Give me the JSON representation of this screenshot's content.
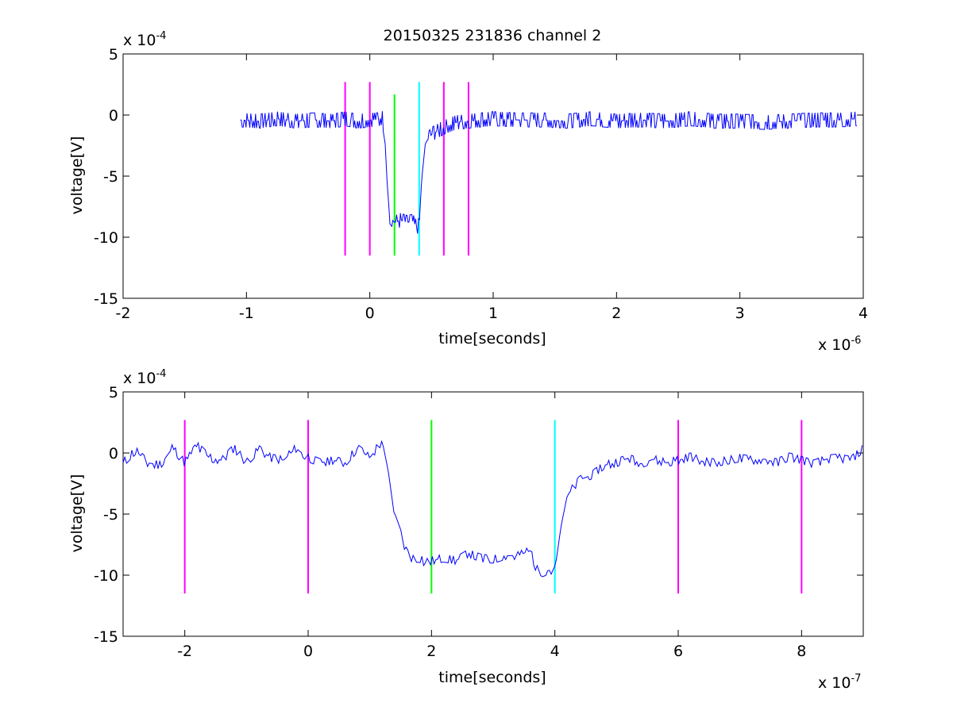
{
  "colors": {
    "background": "#ffffff",
    "axes": "#000000",
    "trace": "#0000ff",
    "marker_magenta": "#ff00ff",
    "marker_green": "#00ff00",
    "marker_cyan": "#00ffff"
  },
  "chart_data": [
    {
      "type": "line",
      "title": "20150325 231836 channel 2",
      "xlabel": "time[seconds]",
      "ylabel": "voltage[V]",
      "x_scale_label": "x 10",
      "x_scale_exponent": "-6",
      "y_scale_label": "x 10",
      "y_scale_exponent": "-4",
      "xlim": [
        -2,
        4
      ],
      "ylim": [
        -15,
        5
      ],
      "xticks": [
        -2,
        -1,
        0,
        1,
        2,
        3,
        4
      ],
      "xtick_labels": [
        "-2",
        "-1",
        "0",
        "1",
        "2",
        "3",
        "4"
      ],
      "yticks": [
        -15,
        -10,
        -5,
        0,
        5
      ],
      "ytick_labels": [
        "-15",
        "-10",
        "-5",
        "0",
        "5"
      ],
      "grid": false,
      "series": [
        {
          "color": "#0000ff",
          "x": [
            -1.05,
            -0.9,
            -0.75,
            -0.6,
            -0.45,
            -0.3,
            -0.2,
            -0.1,
            0.0,
            0.06,
            0.1,
            0.12,
            0.14,
            0.16,
            0.2,
            0.25,
            0.3,
            0.35,
            0.38,
            0.4,
            0.42,
            0.45,
            0.5,
            0.6,
            0.7,
            0.8,
            1.0,
            1.2,
            1.4,
            1.6,
            1.8,
            2.0,
            2.2,
            2.4,
            2.6,
            2.8,
            3.0,
            3.2,
            3.4,
            3.6,
            3.8,
            3.95
          ],
          "y": [
            -0.4,
            -0.5,
            -0.3,
            -0.5,
            -0.4,
            -0.5,
            -0.3,
            -0.5,
            -0.4,
            -0.4,
            -0.2,
            -1.5,
            -5.5,
            -8.3,
            -8.8,
            -8.6,
            -8.8,
            -8.7,
            -9.2,
            -9.0,
            -5.3,
            -2.3,
            -1.6,
            -1.0,
            -0.6,
            -0.5,
            -0.3,
            -0.4,
            -0.4,
            -0.5,
            -0.3,
            -0.5,
            -0.4,
            -0.5,
            -0.3,
            -0.5,
            -0.5,
            -0.6,
            -0.5,
            -0.4,
            -0.4,
            -0.3
          ]
        }
      ],
      "markers": [
        {
          "x": -0.2,
          "y_range": [
            -11.5,
            2.7
          ],
          "color": "#ff00ff"
        },
        {
          "x": 0.0,
          "y_range": [
            -11.5,
            2.7
          ],
          "color": "#ff00ff"
        },
        {
          "x": 0.2,
          "y_range": [
            -11.5,
            1.7
          ],
          "color": "#00ff00"
        },
        {
          "x": 0.4,
          "y_range": [
            -11.5,
            2.7
          ],
          "color": "#00ffff"
        },
        {
          "x": 0.6,
          "y_range": [
            -11.5,
            2.7
          ],
          "color": "#ff00ff"
        },
        {
          "x": 0.8,
          "y_range": [
            -11.5,
            2.7
          ],
          "color": "#ff00ff"
        }
      ]
    },
    {
      "type": "line",
      "title": "",
      "xlabel": "time[seconds]",
      "ylabel": "voltage[V]",
      "x_scale_label": "x 10",
      "x_scale_exponent": "-7",
      "y_scale_label": "x 10",
      "y_scale_exponent": "-4",
      "xlim": [
        -3,
        9
      ],
      "ylim": [
        -15,
        5
      ],
      "xticks": [
        -2,
        0,
        2,
        4,
        6,
        8
      ],
      "xtick_labels": [
        "-2",
        "0",
        "2",
        "4",
        "6",
        "8"
      ],
      "yticks": [
        -15,
        -10,
        -5,
        0,
        5
      ],
      "ytick_labels": [
        "-15",
        "-10",
        "-5",
        "0",
        "5"
      ],
      "grid": false,
      "series": [
        {
          "color": "#0000ff",
          "x": [
            -3.0,
            -2.8,
            -2.6,
            -2.4,
            -2.2,
            -2.0,
            -1.8,
            -1.6,
            -1.4,
            -1.2,
            -1.0,
            -0.8,
            -0.6,
            -0.4,
            -0.2,
            0.0,
            0.2,
            0.4,
            0.6,
            0.8,
            1.0,
            1.2,
            1.3,
            1.4,
            1.5,
            1.6,
            1.7,
            1.8,
            1.9,
            2.0,
            2.2,
            2.4,
            2.6,
            2.8,
            3.0,
            3.2,
            3.4,
            3.6,
            3.7,
            3.8,
            3.9,
            4.0,
            4.1,
            4.2,
            4.3,
            4.4,
            4.6,
            4.8,
            5.0,
            5.2,
            5.4,
            5.6,
            5.8,
            6.0,
            6.2,
            6.4,
            6.6,
            6.8,
            7.0,
            7.2,
            7.4,
            7.6,
            7.8,
            8.0,
            8.2,
            8.4,
            8.6,
            8.8,
            9.0
          ],
          "y": [
            -0.8,
            0.2,
            -0.8,
            -1.0,
            0.4,
            -0.8,
            0.6,
            -0.4,
            -0.6,
            0.4,
            -0.8,
            0.3,
            -0.4,
            -0.6,
            0.4,
            -0.4,
            -0.8,
            -0.6,
            -0.8,
            0.4,
            -0.4,
            1.0,
            -1.5,
            -5.2,
            -6.6,
            -8.2,
            -8.7,
            -8.6,
            -9.0,
            -8.8,
            -8.6,
            -8.8,
            -8.2,
            -8.6,
            -8.7,
            -8.4,
            -8.4,
            -8.0,
            -9.5,
            -9.8,
            -9.6,
            -9.6,
            -6.0,
            -3.5,
            -2.8,
            -2.2,
            -1.8,
            -1.0,
            -0.8,
            -0.4,
            -0.9,
            -0.5,
            -0.8,
            -0.6,
            -0.3,
            -0.7,
            -0.8,
            -0.6,
            -0.4,
            -0.6,
            -0.5,
            -0.8,
            -0.3,
            -0.6,
            -0.9,
            -0.5,
            -0.4,
            -0.6,
            0.4
          ]
        }
      ],
      "markers": [
        {
          "x": -2.0,
          "y_range": [
            -11.5,
            2.7
          ],
          "color": "#ff00ff"
        },
        {
          "x": 0.0,
          "y_range": [
            -11.5,
            2.7
          ],
          "color": "#ff00ff"
        },
        {
          "x": 2.0,
          "y_range": [
            -11.5,
            2.7
          ],
          "color": "#00ff00"
        },
        {
          "x": 4.0,
          "y_range": [
            -11.5,
            2.7
          ],
          "color": "#00ffff"
        },
        {
          "x": 6.0,
          "y_range": [
            -11.5,
            2.7
          ],
          "color": "#ff00ff"
        },
        {
          "x": 8.0,
          "y_range": [
            -11.5,
            2.7
          ],
          "color": "#ff00ff"
        }
      ]
    }
  ]
}
